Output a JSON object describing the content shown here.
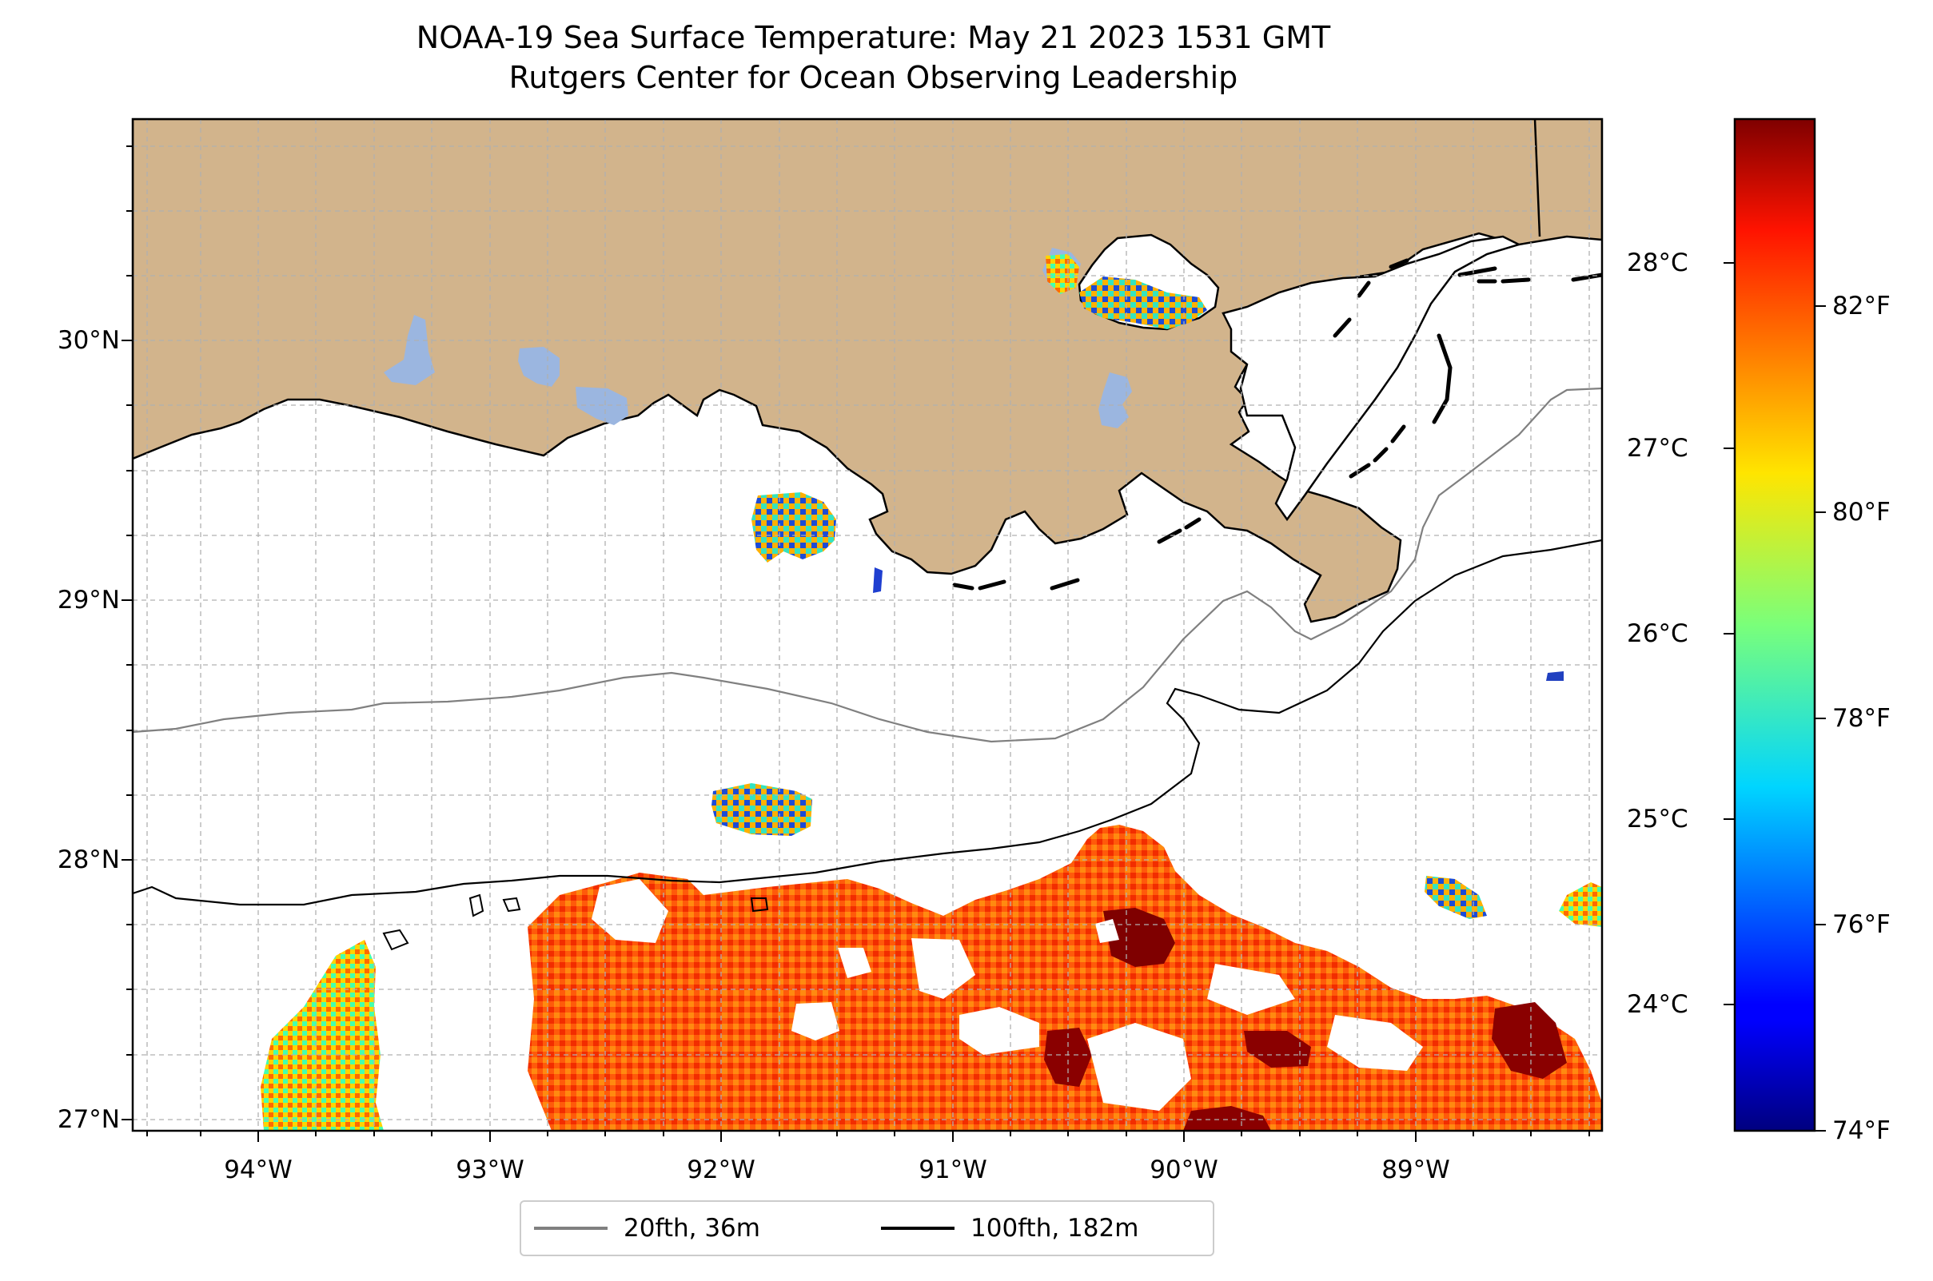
{
  "title": {
    "line1": "NOAA-19 Sea Surface Temperature: May 21 2023 1531 GMT",
    "line2": "Rutgers Center for Ocean Observing Leadership"
  },
  "map": {
    "extent": {
      "lon_min": -94.55,
      "lon_max": -88.2,
      "lat_min": 26.93,
      "lat_max": 30.83
    },
    "gridlines": "dashed, every 0.25°",
    "colors": {
      "land": "#d2b48c",
      "lakes": "#9bb6e0",
      "ocean": "#ffffff"
    },
    "y_ticks": [
      "30°N",
      "29°N",
      "28°N",
      "27°N"
    ],
    "x_ticks": [
      "94°W",
      "93°W",
      "92°W",
      "91°W",
      "90°W",
      "89°W"
    ]
  },
  "colorbar": {
    "colormap": "jet",
    "celsius_labels": [
      "28°C",
      "27°C",
      "26°C",
      "25°C",
      "24°C"
    ],
    "fahrenheit_labels": [
      "82°F",
      "80°F",
      "78°F",
      "76°F",
      "74°F"
    ]
  },
  "legend": {
    "items": [
      {
        "label": "20fth, 36m",
        "color": "#808080"
      },
      {
        "label": "100fth, 182m",
        "color": "#000000"
      }
    ]
  }
}
